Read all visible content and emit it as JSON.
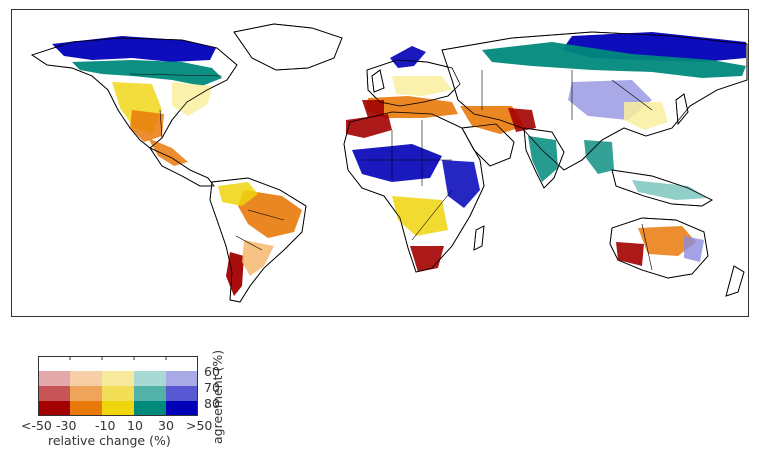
{
  "legend": {
    "x_title": "relative change (%)",
    "y_title": "agreement (%)",
    "x_ticks": [
      "<-50",
      "-30",
      "-10",
      "10",
      "30",
      ">50"
    ],
    "y_ticks": [
      "60",
      "70",
      "80"
    ],
    "colors": {
      "row_60": [
        "#e4a9ab",
        "#f6cfa6",
        "#f7ea9f",
        "#a9d9d4",
        "#a9a9e6"
      ],
      "row_70": [
        "#c75457",
        "#f0a35b",
        "#f3de57",
        "#52b2a8",
        "#5858d2"
      ],
      "row_80": [
        "#a30000",
        "#e97a0a",
        "#efd50d",
        "#008a7c",
        "#0000b7"
      ]
    }
  },
  "map": {
    "palette": {
      "dark_red": "#a30000",
      "orange": "#e97a0a",
      "light_orange": "#f6b870",
      "yellow": "#efd50d",
      "light_yellow": "#f8ee9e",
      "teal": "#008a7c",
      "light_teal": "#7cc7bd",
      "blue": "#0000b7",
      "light_blue": "#8c8ce0",
      "land_white": "#ffffff",
      "border": "#000000"
    }
  }
}
